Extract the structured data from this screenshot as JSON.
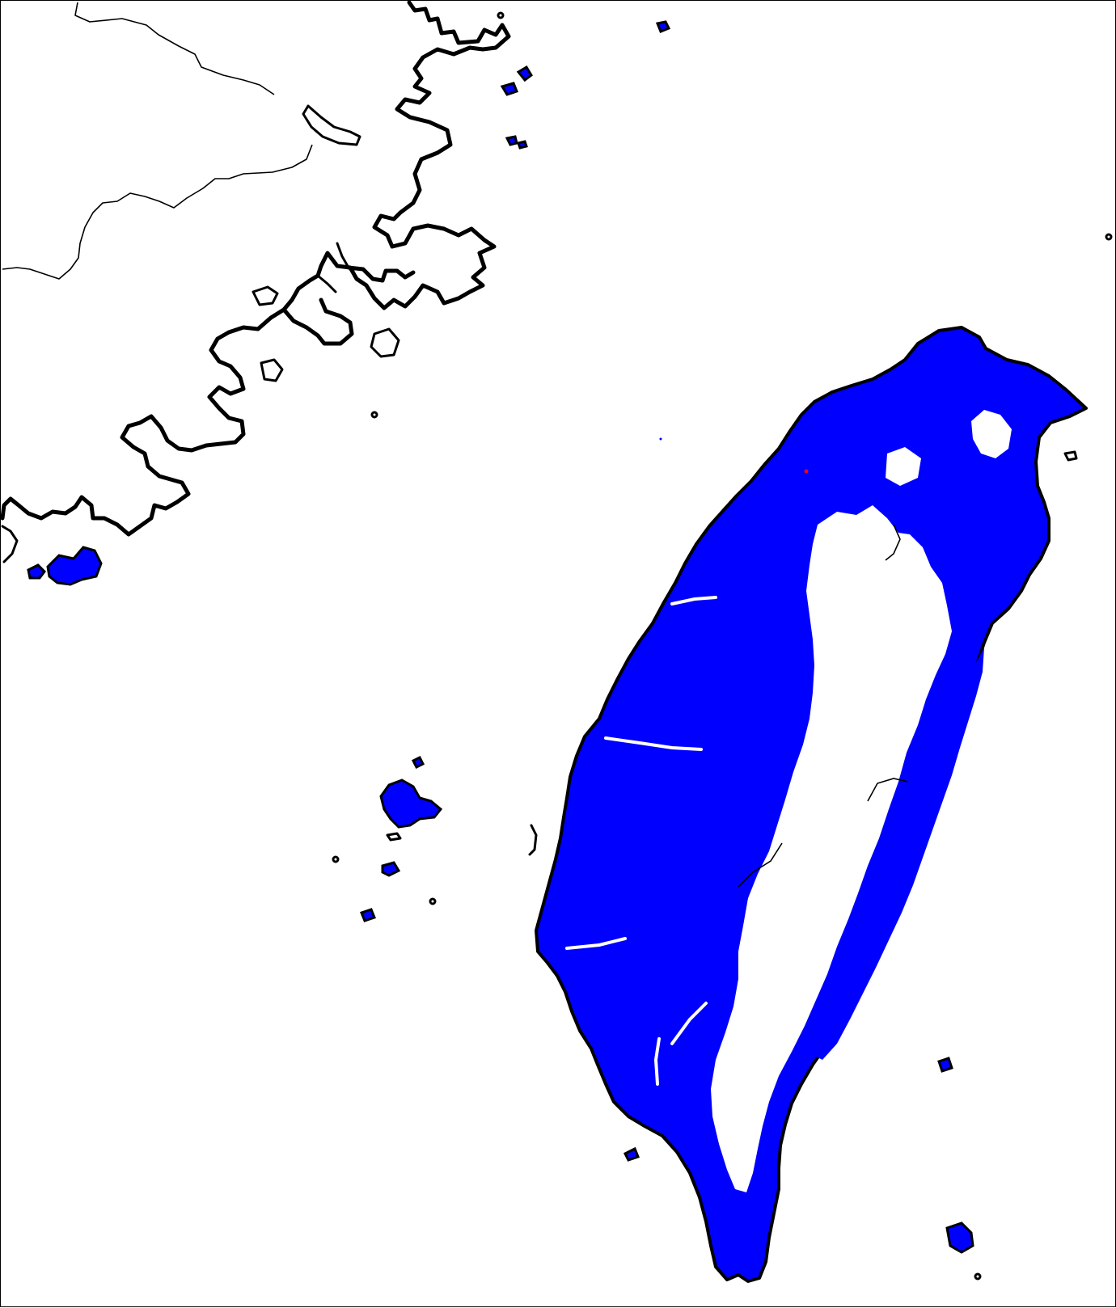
{
  "map": {
    "colors": {
      "background": "#ffffff",
      "coastline": "#000000",
      "landcover": "#0000ff",
      "marker": "#ff0000"
    },
    "layers": [
      "coastline",
      "country-border",
      "landcover-mask",
      "point-marker"
    ]
  }
}
